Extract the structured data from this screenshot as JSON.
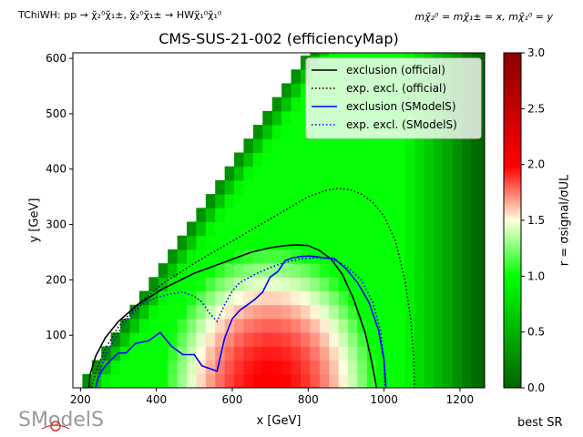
{
  "header": {
    "process": "TChiWH: pp → χ̃₂⁰χ̃₁±, χ̃₂⁰χ̃₁± → HWχ̃₁⁰χ̃₁⁰",
    "masses": "mχ̃₂⁰ = mχ̃₁± = x, mχ̃₁⁰ = y",
    "logo": "SModelS",
    "footer": "best SR"
  },
  "chart_data": {
    "type": "heatmap",
    "title": "CMS-SUS-21-002 (efficiencyMap)",
    "xlabel": "x [GeV]",
    "ylabel": "y [GeV]",
    "xlim": [
      180,
      1265
    ],
    "ylim": [
      5,
      610
    ],
    "xticks": [
      200,
      400,
      600,
      800,
      1000,
      1200
    ],
    "yticks": [
      100,
      200,
      300,
      400,
      500,
      600
    ],
    "colorbar": {
      "label": "r = σsignal/σUL",
      "range": [
        0.0,
        3.0
      ],
      "ticks": [
        0.0,
        0.5,
        1.0,
        1.5,
        2.0,
        2.5,
        3.0
      ],
      "colors": [
        "#006400",
        "#00ff00",
        "#ffffe0",
        "#ff0000",
        "#8b0000"
      ]
    },
    "legend_position": "top-right",
    "series": [
      {
        "name": "exclusion (official)",
        "color": "#000000",
        "style": "solid",
        "x": [
          222,
          225,
          240,
          265,
          300,
          350,
          420,
          500,
          580,
          650,
          700,
          740,
          770,
          800,
          830,
          860,
          890,
          920,
          950,
          965,
          975,
          980
        ],
        "y": [
          5,
          28,
          62,
          95,
          125,
          155,
          185,
          212,
          232,
          250,
          258,
          262,
          263,
          262,
          253,
          238,
          210,
          165,
          105,
          60,
          25,
          5
        ]
      },
      {
        "name": "exp. excl. (official)",
        "color": "#000000",
        "style": "dotted",
        "x": [
          230,
          240,
          265,
          300,
          350,
          420,
          500,
          580,
          650,
          700,
          750,
          800,
          850,
          880,
          910,
          940,
          970,
          1000,
          1030,
          1055,
          1070,
          1078,
          1080
        ],
        "y": [
          5,
          35,
          75,
          115,
          155,
          195,
          230,
          262,
          290,
          310,
          330,
          350,
          362,
          365,
          363,
          355,
          340,
          315,
          270,
          200,
          130,
          60,
          5
        ]
      },
      {
        "name": "exclusion (SModelS)",
        "color": "#0000ff",
        "style": "solid",
        "x": [
          240,
          245,
          260,
          280,
          300,
          320,
          345,
          380,
          410,
          440,
          470,
          500,
          520,
          540,
          560,
          580,
          600,
          620,
          640,
          660,
          680,
          700,
          720,
          740,
          760,
          780,
          800,
          820,
          840,
          870,
          900,
          930,
          960,
          985,
          1000,
          1005
        ],
        "y": [
          5,
          20,
          40,
          55,
          68,
          68,
          85,
          90,
          105,
          80,
          65,
          65,
          45,
          40,
          35,
          95,
          130,
          145,
          155,
          165,
          178,
          205,
          215,
          235,
          240,
          242,
          243,
          242,
          240,
          238,
          220,
          195,
          160,
          110,
          55,
          5
        ]
      },
      {
        "name": "exp. excl. (SModelS)",
        "color": "#0000ff",
        "style": "dotted",
        "x": [
          240,
          250,
          270,
          300,
          330,
          360,
          400,
          440,
          470,
          500,
          520,
          540,
          560,
          580,
          600,
          620,
          660,
          700,
          740,
          780,
          820,
          860,
          900,
          940,
          970,
          990,
          1000,
          1002
        ],
        "y": [
          5,
          35,
          70,
          105,
          135,
          155,
          168,
          175,
          178,
          170,
          160,
          140,
          125,
          155,
          180,
          195,
          210,
          222,
          232,
          238,
          240,
          238,
          225,
          200,
          160,
          110,
          55,
          5
        ]
      }
    ]
  }
}
